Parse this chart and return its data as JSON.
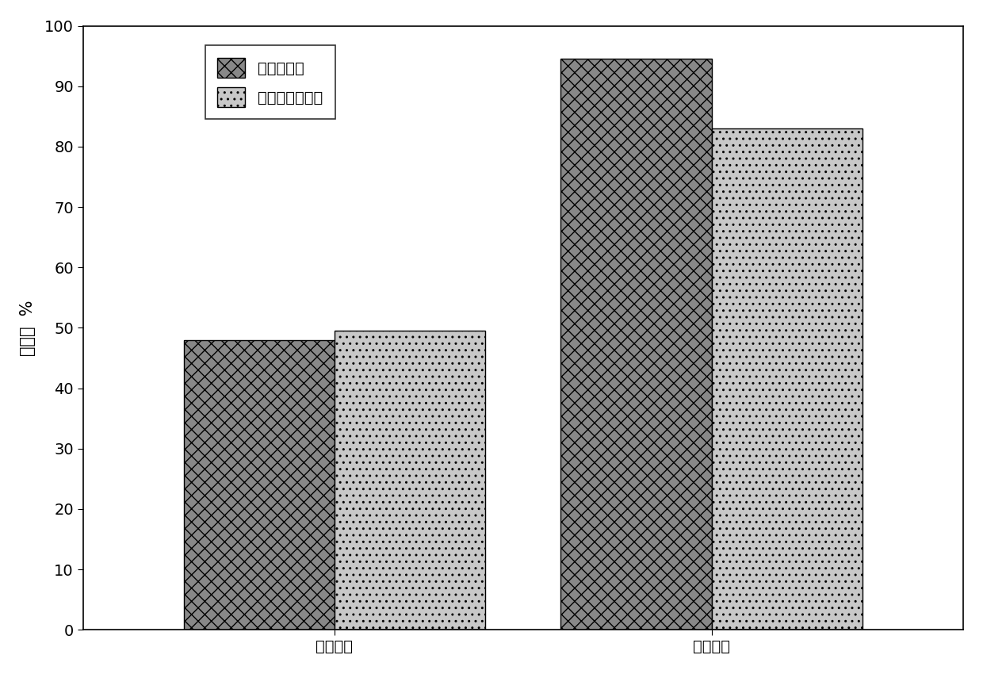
{
  "categories": [
    "无催化剑",
    "有催化剑"
  ],
  "series": [
    {
      "label": "苯酚去除率",
      "values": [
        48,
        94.5
      ],
      "hatch": "xx",
      "facecolor": "#888888",
      "edgecolor": "#000000"
    },
    {
      "label": "总有机碳去除率",
      "values": [
        49.5,
        83
      ],
      "hatch": "..",
      "facecolor": "#c8c8c8",
      "edgecolor": "#000000"
    }
  ],
  "ylabel": "去除率  %",
  "ylim": [
    0,
    100
  ],
  "yticks": [
    0,
    10,
    20,
    30,
    40,
    50,
    60,
    70,
    80,
    90,
    100
  ],
  "bar_width": 0.18,
  "group_positions": [
    0.3,
    0.75
  ],
  "xlim": [
    0.0,
    1.05
  ],
  "background_color": "#ffffff",
  "axis_fontsize": 15,
  "tick_fontsize": 14,
  "legend_fontsize": 14
}
